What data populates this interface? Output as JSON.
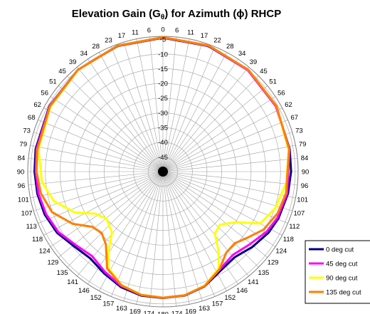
{
  "chart_data": {
    "type": "polar-line",
    "title": {
      "before": "Elevation Gain (G",
      "sub": "θ",
      "after": ") for Azimuth (ϕ) RHCP"
    },
    "angle_ticks": [
      "0",
      "6",
      "11",
      "17",
      "22",
      "28",
      "34",
      "39",
      "45",
      "51",
      "56",
      "62",
      "67",
      "73",
      "79",
      "84",
      "90",
      "96",
      "101",
      "107",
      "112",
      "118",
      "124",
      "129",
      "135",
      "141",
      "146",
      "152",
      "157",
      "163",
      "169",
      "174",
      "180",
      "174",
      "169",
      "163",
      "157",
      "152",
      "146",
      "141",
      "135",
      "129",
      "124",
      "118",
      "113",
      "107",
      "101",
      "96",
      "90",
      "84",
      "79",
      "73",
      "68",
      "62",
      "56",
      "51",
      "45",
      "39",
      "34",
      "28",
      "23",
      "17",
      "11",
      "6"
    ],
    "radial_ticks": [
      "-5",
      "-10",
      "-15",
      "-20",
      "-25",
      "-30",
      "-35",
      "-40",
      "-45",
      "-50"
    ],
    "r_range_db": [
      -50,
      -4
    ],
    "series": [
      {
        "name": "0 deg cut",
        "color": "#00007f",
        "points": [
          [
            0,
            -4.5
          ],
          [
            20,
            -4.6
          ],
          [
            40,
            -5.0
          ],
          [
            60,
            -5.6
          ],
          [
            80,
            -6.2
          ],
          [
            90,
            -6.4
          ],
          [
            100,
            -6.8
          ],
          [
            112,
            -7.6
          ],
          [
            120,
            -8.5
          ],
          [
            130,
            -10.2
          ],
          [
            140,
            -12.0
          ],
          [
            150,
            -11.0
          ],
          [
            160,
            -8.5
          ],
          [
            170,
            -7.2
          ],
          [
            180,
            -7.0
          ],
          [
            190,
            -7.2
          ],
          [
            200,
            -8.2
          ],
          [
            210,
            -10.0
          ],
          [
            220,
            -11.5
          ],
          [
            230,
            -10.5
          ],
          [
            240,
            -8.4
          ],
          [
            250,
            -7.2
          ],
          [
            260,
            -6.6
          ],
          [
            270,
            -6.3
          ],
          [
            280,
            -6.0
          ],
          [
            300,
            -5.4
          ],
          [
            320,
            -4.9
          ],
          [
            340,
            -4.6
          ],
          [
            360,
            -4.5
          ]
        ]
      },
      {
        "name": "45 deg cut",
        "color": "#ff00ff",
        "points": [
          [
            0,
            -4.4
          ],
          [
            20,
            -4.5
          ],
          [
            40,
            -5.0
          ],
          [
            60,
            -5.6
          ],
          [
            80,
            -6.3
          ],
          [
            100,
            -7.1
          ],
          [
            112,
            -8.0
          ],
          [
            120,
            -9.2
          ],
          [
            130,
            -11.5
          ],
          [
            140,
            -13.0
          ],
          [
            150,
            -11.5
          ],
          [
            160,
            -8.6
          ],
          [
            170,
            -7.3
          ],
          [
            180,
            -7.1
          ],
          [
            190,
            -7.4
          ],
          [
            200,
            -8.6
          ],
          [
            210,
            -10.6
          ],
          [
            220,
            -12.5
          ],
          [
            230,
            -11.2
          ],
          [
            240,
            -8.9
          ],
          [
            250,
            -7.7
          ],
          [
            260,
            -7.0
          ],
          [
            270,
            -6.7
          ],
          [
            280,
            -6.3
          ],
          [
            300,
            -5.5
          ],
          [
            320,
            -4.9
          ],
          [
            340,
            -4.5
          ],
          [
            360,
            -4.4
          ]
        ]
      },
      {
        "name": "90 deg cut",
        "color": "#ffff00",
        "points": [
          [
            0,
            -4.3
          ],
          [
            20,
            -4.4
          ],
          [
            40,
            -4.8
          ],
          [
            60,
            -5.4
          ],
          [
            80,
            -6.6
          ],
          [
            95,
            -7.8
          ],
          [
            108,
            -9.8
          ],
          [
            118,
            -12.5
          ],
          [
            125,
            -20.0
          ],
          [
            133,
            -23.5
          ],
          [
            140,
            -22.5
          ],
          [
            145,
            -17.0
          ],
          [
            150,
            -12.0
          ],
          [
            160,
            -8.7
          ],
          [
            170,
            -7.3
          ],
          [
            180,
            -7.1
          ],
          [
            190,
            -7.5
          ],
          [
            200,
            -8.9
          ],
          [
            210,
            -12.5
          ],
          [
            215,
            -18.0
          ],
          [
            220,
            -23.0
          ],
          [
            230,
            -25.0
          ],
          [
            238,
            -23.0
          ],
          [
            245,
            -17.0
          ],
          [
            255,
            -11.5
          ],
          [
            265,
            -8.7
          ],
          [
            280,
            -7.0
          ],
          [
            300,
            -5.8
          ],
          [
            320,
            -5.0
          ],
          [
            340,
            -4.5
          ],
          [
            360,
            -4.3
          ]
        ]
      },
      {
        "name": "135 deg cut",
        "color": "#ff7f00",
        "points": [
          [
            0,
            -4.3
          ],
          [
            20,
            -4.4
          ],
          [
            40,
            -4.8
          ],
          [
            60,
            -5.4
          ],
          [
            80,
            -6.4
          ],
          [
            100,
            -7.5
          ],
          [
            110,
            -8.5
          ],
          [
            120,
            -10.5
          ],
          [
            128,
            -13.5
          ],
          [
            135,
            -15.5
          ],
          [
            142,
            -15.0
          ],
          [
            150,
            -11.6
          ],
          [
            160,
            -8.6
          ],
          [
            170,
            -7.3
          ],
          [
            180,
            -7.1
          ],
          [
            190,
            -7.4
          ],
          [
            200,
            -8.8
          ],
          [
            210,
            -12.0
          ],
          [
            218,
            -18.5
          ],
          [
            225,
            -20.5
          ],
          [
            232,
            -19.5
          ],
          [
            240,
            -14.5
          ],
          [
            250,
            -9.8
          ],
          [
            260,
            -7.8
          ],
          [
            270,
            -7.0
          ],
          [
            280,
            -6.6
          ],
          [
            300,
            -5.6
          ],
          [
            320,
            -4.9
          ],
          [
            340,
            -4.5
          ],
          [
            360,
            -4.3
          ]
        ]
      }
    ],
    "legend_position": "bottom-right",
    "grid": true
  }
}
